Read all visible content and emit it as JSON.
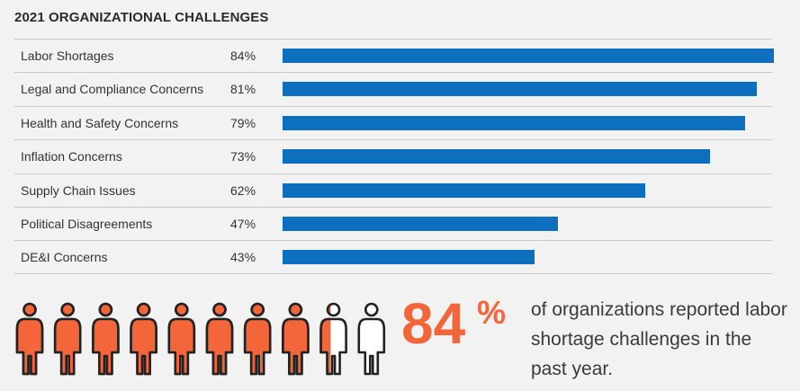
{
  "chart_data": {
    "type": "bar",
    "title": "2021 ORGANIZATIONAL CHALLENGES",
    "categories": [
      "Labor Shortages",
      "Legal and Compliance Concerns",
      "Health and Safety Concerns",
      "Inflation Concerns",
      "Supply Chain Issues",
      "Political Disagreements",
      "DE&I Concerns"
    ],
    "values": [
      84,
      81,
      79,
      73,
      62,
      47,
      43
    ],
    "value_labels": [
      "84%",
      "81%",
      "79%",
      "73%",
      "62%",
      "47%",
      "43%"
    ],
    "orientation": "horizontal",
    "bar_color": "#0f6fbf",
    "grid": false
  },
  "stat": {
    "number": "84",
    "percent_sign": "%",
    "text": "of organizations reported labor shortage challenges in the past year.",
    "accent_color": "#f2663a",
    "people_total": 10,
    "people_filled": 8.4
  }
}
